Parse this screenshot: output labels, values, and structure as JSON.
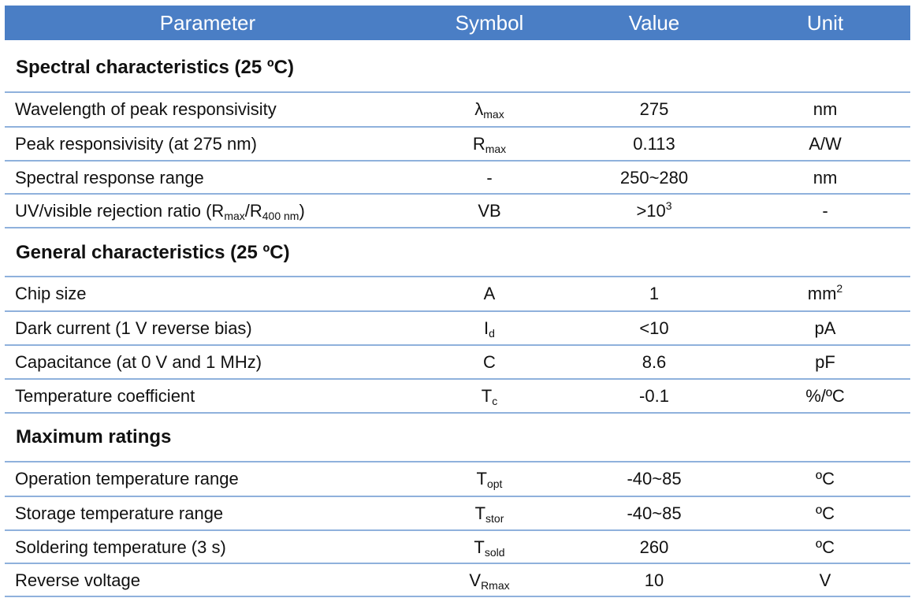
{
  "header": {
    "parameter": "Parameter",
    "symbol": "Symbol",
    "value": "Value",
    "unit": "Unit"
  },
  "sections": [
    {
      "title": "Spectral characteristics (25 ºC)",
      "rows": [
        {
          "parameter": "Wavelength of peak responsivisity",
          "symbol_base": "λ",
          "symbol_sub": "max",
          "value": "275",
          "unit": "nm"
        },
        {
          "parameter": "Peak responsivisity (at 275 nm)",
          "symbol_base": "R",
          "symbol_sub": "max",
          "value": "0.113",
          "unit": "A/W"
        },
        {
          "parameter": "Spectral response range",
          "symbol_base": "-",
          "symbol_sub": "",
          "value": "250~280",
          "unit": "nm"
        },
        {
          "parameter_base": "UV/visible rejection ratio (R",
          "parameter_sub1": "max",
          "parameter_mid": "/R",
          "parameter_sub2": "400 nm",
          "parameter_end": ")",
          "symbol_base": "VB",
          "symbol_sub": "",
          "value_base": ">10",
          "value_sup": "3",
          "unit": "-"
        }
      ]
    },
    {
      "title": "General characteristics (25 ºC)",
      "rows": [
        {
          "parameter": "Chip size",
          "symbol_base": "A",
          "symbol_sub": "",
          "value": "1",
          "unit_base": "mm",
          "unit_sup": "2"
        },
        {
          "parameter": "Dark current (1 V reverse bias)",
          "symbol_base": "I",
          "symbol_sub": "d",
          "value": "<10",
          "unit": "pA"
        },
        {
          "parameter": "Capacitance (at 0 V and 1 MHz)",
          "symbol_base": "C",
          "symbol_sub": "",
          "value": "8.6",
          "unit": "pF"
        },
        {
          "parameter": "Temperature coefficient",
          "symbol_base": "T",
          "symbol_sub": "c",
          "value": "-0.1",
          "unit": "%/ºC"
        }
      ]
    },
    {
      "title": "Maximum ratings",
      "rows": [
        {
          "parameter": "Operation temperature range",
          "symbol_base": "T",
          "symbol_sub": "opt",
          "value": "-40~85",
          "unit": "ºC"
        },
        {
          "parameter": "Storage temperature range",
          "symbol_base": "T",
          "symbol_sub": "stor",
          "value": "-40~85",
          "unit": "ºC"
        },
        {
          "parameter": "Soldering temperature (3 s)",
          "symbol_base": "T",
          "symbol_sub": "sold",
          "value": "260",
          "unit": "ºC"
        },
        {
          "parameter": "Reverse voltage",
          "symbol_base": "V",
          "symbol_sub": "Rmax",
          "value": "10",
          "unit": "V"
        }
      ]
    }
  ],
  "colors": {
    "header_background": "#4a7ec5",
    "rule_line": "#8fb1dc"
  }
}
